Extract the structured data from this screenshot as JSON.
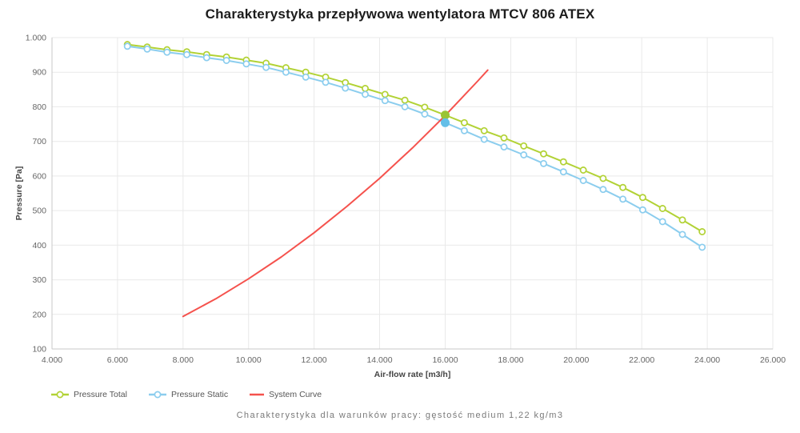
{
  "page": {
    "caption": "Charakterystyka dla warunków pracy: gęstość medium 1,22 kg/m3"
  },
  "chart_data": {
    "type": "line",
    "title": "Charakterystyka przepływowa wentylatora MTCV 806 ATEX",
    "xlabel": "Air-flow rate [m3/h]",
    "ylabel": "Pressure [Pa]",
    "xlim": [
      4000,
      26000
    ],
    "ylim": [
      100,
      1000
    ],
    "grid": true,
    "legend_position": "bottom-left",
    "x_ticks": [
      {
        "value": 4000,
        "label": "4.000"
      },
      {
        "value": 6000,
        "label": "6.000"
      },
      {
        "value": 8000,
        "label": "8.000"
      },
      {
        "value": 10000,
        "label": "10.000"
      },
      {
        "value": 12000,
        "label": "12.000"
      },
      {
        "value": 14000,
        "label": "14.000"
      },
      {
        "value": 16000,
        "label": "16.000"
      },
      {
        "value": 18000,
        "label": "18.000"
      },
      {
        "value": 20000,
        "label": "20.000"
      },
      {
        "value": 22000,
        "label": "22.000"
      },
      {
        "value": 24000,
        "label": "24.000"
      },
      {
        "value": 26000,
        "label": "26.000"
      }
    ],
    "y_ticks": [
      {
        "value": 100,
        "label": "100"
      },
      {
        "value": 200,
        "label": "200"
      },
      {
        "value": 300,
        "label": "300"
      },
      {
        "value": 400,
        "label": "400"
      },
      {
        "value": 500,
        "label": "500"
      },
      {
        "value": 600,
        "label": "600"
      },
      {
        "value": 700,
        "label": "700"
      },
      {
        "value": 800,
        "label": "800"
      },
      {
        "value": 900,
        "label": "900"
      },
      {
        "value": 1000,
        "label": "1.000"
      }
    ],
    "series": [
      {
        "name": "Pressure Total",
        "color": "#b2d235",
        "marker": "circle",
        "x": [
          6300,
          6905,
          7510,
          8115,
          8720,
          9325,
          9930,
          10535,
          11140,
          11745,
          12350,
          12955,
          13560,
          14165,
          14770,
          15375,
          15980,
          16585,
          17190,
          17795,
          18400,
          19005,
          19610,
          20215,
          20820,
          21425,
          22030,
          22635,
          23240,
          23845
        ],
        "y": [
          980,
          973,
          965,
          959,
          951,
          944,
          935,
          926,
          913,
          900,
          886,
          870,
          853,
          836,
          819,
          799,
          777,
          754,
          731,
          710,
          687,
          664,
          641,
          617,
          593,
          567,
          538,
          506,
          473,
          439
        ]
      },
      {
        "name": "Pressure Static",
        "color": "#8bcdee",
        "marker": "circle",
        "x": [
          6300,
          6905,
          7510,
          8115,
          8720,
          9325,
          9930,
          10535,
          11140,
          11745,
          12350,
          12955,
          13560,
          14165,
          14770,
          15375,
          15980,
          16585,
          17190,
          17795,
          18400,
          19005,
          19610,
          20215,
          20820,
          21425,
          22030,
          22635,
          23240,
          23845
        ],
        "y": [
          975,
          967,
          958,
          951,
          942,
          934,
          924,
          914,
          900,
          886,
          871,
          854,
          836,
          818,
          800,
          779,
          755,
          731,
          706,
          684,
          661,
          636,
          612,
          587,
          561,
          533,
          502,
          468,
          431,
          394
        ]
      },
      {
        "name": "System Curve",
        "color": "#f5524d",
        "marker": "none",
        "x": [
          8000,
          9000,
          10000,
          11000,
          12000,
          13000,
          14000,
          15000,
          16000,
          17000,
          17300
        ],
        "y": [
          194,
          245,
          303,
          366,
          436,
          512,
          593,
          681,
          775,
          875,
          906
        ]
      }
    ],
    "operating_points": [
      {
        "series": "Pressure Total",
        "x": 16000,
        "y": 776,
        "color": "#9ac433",
        "radius": 5.5
      },
      {
        "series": "Pressure Static",
        "x": 16000,
        "y": 754,
        "color": "#64bfe8",
        "radius": 5.5
      }
    ],
    "colors": {
      "grid": "#e9e9e9",
      "axis_line": "#c9c9c9",
      "tick_label": "#666666",
      "axis_title": "#444444"
    }
  }
}
